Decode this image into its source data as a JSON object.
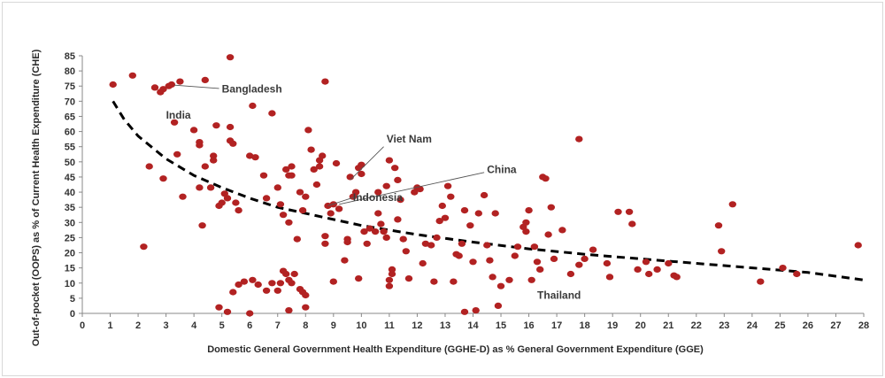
{
  "chart_data": {
    "type": "scatter",
    "xlabel": "Domestic General Government Health Expenditure (GGHE-D) as % General Government Expenditure (GGE)",
    "ylabel": "Out-of-pocket (OOPS) as % of Current Health Expenditure (CHE)",
    "xlim": [
      0,
      28
    ],
    "ylim": [
      0,
      85
    ],
    "x_ticks": [
      0,
      1,
      2,
      3,
      4,
      5,
      6,
      7,
      8,
      9,
      10,
      11,
      12,
      13,
      14,
      15,
      16,
      17,
      18,
      19,
      20,
      21,
      22,
      23,
      24,
      25,
      26,
      27,
      28
    ],
    "y_ticks": [
      0,
      5,
      10,
      15,
      20,
      25,
      30,
      35,
      40,
      45,
      50,
      55,
      60,
      65,
      70,
      75,
      80,
      85
    ],
    "grid": false,
    "colors": {
      "points": "#b22222",
      "trend": "#000000",
      "axis": "#888888"
    },
    "trendline": {
      "style": "dashed",
      "points": [
        [
          1.1,
          70
        ],
        [
          1.5,
          64
        ],
        [
          2,
          58.5
        ],
        [
          3,
          51
        ],
        [
          4,
          45.5
        ],
        [
          5,
          41.5
        ],
        [
          6,
          38
        ],
        [
          7,
          35
        ],
        [
          8,
          33
        ],
        [
          9,
          31
        ],
        [
          10,
          29
        ],
        [
          11,
          27.5
        ],
        [
          12,
          26
        ],
        [
          14,
          23.5
        ],
        [
          16,
          21.3
        ],
        [
          18,
          19.5
        ],
        [
          20,
          18
        ],
        [
          22,
          16.5
        ],
        [
          24,
          15
        ],
        [
          26,
          13.5
        ],
        [
          28,
          11
        ]
      ]
    },
    "points": [
      [
        1.1,
        75.5
      ],
      [
        1.8,
        78.5
      ],
      [
        2.6,
        74.5
      ],
      [
        2.8,
        73
      ],
      [
        2.9,
        74
      ],
      [
        3.1,
        75
      ],
      [
        3.2,
        75.5
      ],
      [
        3.5,
        76.5
      ],
      [
        4.4,
        77
      ],
      [
        5.3,
        84.5
      ],
      [
        8.7,
        76.5
      ],
      [
        2.2,
        22
      ],
      [
        2.4,
        48.5
      ],
      [
        2.9,
        44.5
      ],
      [
        3.3,
        63
      ],
      [
        3.4,
        52.5
      ],
      [
        3.6,
        38.5
      ],
      [
        4.0,
        60.5
      ],
      [
        4.2,
        56.5
      ],
      [
        4.2,
        55.5
      ],
      [
        4.2,
        41.5
      ],
      [
        4.3,
        29
      ],
      [
        4.4,
        48.5
      ],
      [
        4.6,
        41.5
      ],
      [
        4.7,
        52
      ],
      [
        4.7,
        50.5
      ],
      [
        4.8,
        62
      ],
      [
        4.9,
        35.5
      ],
      [
        5.0,
        36.5
      ],
      [
        5.1,
        39.5
      ],
      [
        5.2,
        38
      ],
      [
        5.3,
        57
      ],
      [
        5.3,
        61.5
      ],
      [
        5.4,
        56
      ],
      [
        5.5,
        36.5
      ],
      [
        5.6,
        34
      ],
      [
        4.9,
        2
      ],
      [
        5.2,
        0.5
      ],
      [
        5.4,
        7
      ],
      [
        5.6,
        9.5
      ],
      [
        5.8,
        10.5
      ],
      [
        6.0,
        0
      ],
      [
        6.1,
        11
      ],
      [
        6.3,
        9.5
      ],
      [
        6.6,
        7.5
      ],
      [
        6.8,
        10
      ],
      [
        7.0,
        7.5
      ],
      [
        7.1,
        10
      ],
      [
        7.2,
        14
      ],
      [
        7.3,
        13
      ],
      [
        7.4,
        11
      ],
      [
        7.4,
        1
      ],
      [
        7.5,
        10
      ],
      [
        7.6,
        13
      ],
      [
        7.8,
        8
      ],
      [
        7.9,
        7
      ],
      [
        8.0,
        6
      ],
      [
        8.0,
        2
      ],
      [
        6.0,
        52
      ],
      [
        6.1,
        68.5
      ],
      [
        6.2,
        51.5
      ],
      [
        6.5,
        45.5
      ],
      [
        6.6,
        38
      ],
      [
        6.8,
        66
      ],
      [
        7.0,
        41.5
      ],
      [
        7.1,
        36
      ],
      [
        7.2,
        32.5
      ],
      [
        7.3,
        47.5
      ],
      [
        7.4,
        45.5
      ],
      [
        7.4,
        30
      ],
      [
        7.5,
        48.5
      ],
      [
        7.5,
        45.5
      ],
      [
        7.7,
        24.5
      ],
      [
        7.8,
        40
      ],
      [
        7.9,
        34
      ],
      [
        8.0,
        38.5
      ],
      [
        8.1,
        60.5
      ],
      [
        8.2,
        54
      ],
      [
        8.3,
        47.5
      ],
      [
        8.4,
        42.5
      ],
      [
        8.5,
        50.5
      ],
      [
        8.5,
        48.5
      ],
      [
        8.6,
        52
      ],
      [
        8.7,
        23
      ],
      [
        8.7,
        25.5
      ],
      [
        8.8,
        35.5
      ],
      [
        8.9,
        33
      ],
      [
        9.0,
        36
      ],
      [
        9.1,
        49.5
      ],
      [
        9.2,
        34.5
      ],
      [
        9.0,
        10.5
      ],
      [
        9.4,
        17.5
      ],
      [
        9.5,
        23.5
      ],
      [
        9.5,
        24.5
      ],
      [
        9.6,
        45
      ],
      [
        9.7,
        38.5
      ],
      [
        9.8,
        40
      ],
      [
        9.9,
        11.5
      ],
      [
        9.9,
        48
      ],
      [
        10.0,
        49
      ],
      [
        10.0,
        46
      ],
      [
        10.1,
        27
      ],
      [
        10.2,
        23
      ],
      [
        10.3,
        28
      ],
      [
        10.5,
        27
      ],
      [
        10.6,
        33
      ],
      [
        10.6,
        40
      ],
      [
        10.7,
        29.5
      ],
      [
        10.8,
        27
      ],
      [
        10.9,
        25
      ],
      [
        10.9,
        42
      ],
      [
        11.0,
        9
      ],
      [
        11.0,
        11
      ],
      [
        11.1,
        14.5
      ],
      [
        11.1,
        13
      ],
      [
        11.0,
        50.5
      ],
      [
        11.2,
        48
      ],
      [
        11.3,
        31
      ],
      [
        11.3,
        44
      ],
      [
        11.4,
        37.5
      ],
      [
        11.5,
        24.5
      ],
      [
        11.6,
        20.5
      ],
      [
        11.7,
        11.5
      ],
      [
        11.9,
        40
      ],
      [
        12.0,
        41.5
      ],
      [
        12.1,
        41
      ],
      [
        12.2,
        16.5
      ],
      [
        12.3,
        23
      ],
      [
        12.5,
        22.5
      ],
      [
        12.6,
        10.5
      ],
      [
        12.7,
        25
      ],
      [
        12.8,
        30.5
      ],
      [
        12.9,
        35.5
      ],
      [
        13.0,
        31.5
      ],
      [
        13.1,
        42
      ],
      [
        13.2,
        38.5
      ],
      [
        13.3,
        10.5
      ],
      [
        13.4,
        19.5
      ],
      [
        13.5,
        19
      ],
      [
        13.6,
        23
      ],
      [
        13.7,
        34
      ],
      [
        13.9,
        29
      ],
      [
        14.0,
        17
      ],
      [
        14.2,
        33
      ],
      [
        14.4,
        39
      ],
      [
        14.5,
        22.5
      ],
      [
        14.6,
        17.5
      ],
      [
        14.7,
        12
      ],
      [
        14.8,
        33
      ],
      [
        14.9,
        2.5
      ],
      [
        15.0,
        9
      ],
      [
        15.3,
        11
      ],
      [
        15.5,
        19
      ],
      [
        15.6,
        22
      ],
      [
        15.8,
        28.5
      ],
      [
        15.9,
        27
      ],
      [
        15.9,
        30
      ],
      [
        16.0,
        34
      ],
      [
        16.1,
        11
      ],
      [
        16.2,
        22
      ],
      [
        16.3,
        17
      ],
      [
        16.4,
        14.5
      ],
      [
        16.5,
        45
      ],
      [
        16.6,
        44.5
      ],
      [
        16.7,
        26
      ],
      [
        16.8,
        35
      ],
      [
        16.9,
        18
      ],
      [
        17.2,
        27.5
      ],
      [
        17.5,
        13
      ],
      [
        14.1,
        1
      ],
      [
        13.7,
        0.5
      ],
      [
        17.8,
        57.5
      ],
      [
        17.8,
        16
      ],
      [
        18.0,
        18
      ],
      [
        18.3,
        21
      ],
      [
        18.8,
        16.5
      ],
      [
        18.9,
        12
      ],
      [
        19.2,
        33.5
      ],
      [
        19.6,
        33.5
      ],
      [
        19.7,
        29.5
      ],
      [
        19.9,
        14.5
      ],
      [
        20.2,
        17
      ],
      [
        20.3,
        13
      ],
      [
        20.6,
        14.5
      ],
      [
        21.0,
        16.5
      ],
      [
        21.2,
        12.5
      ],
      [
        21.3,
        12
      ],
      [
        22.8,
        29
      ],
      [
        22.9,
        20.5
      ],
      [
        23.3,
        36
      ],
      [
        24.3,
        10.5
      ],
      [
        25.1,
        15
      ],
      [
        25.6,
        13
      ],
      [
        27.8,
        22.5
      ]
    ],
    "annotations": [
      {
        "text": "Bangladesh",
        "x": 5.0,
        "y": 74.0
      },
      {
        "text": "India",
        "x": 3.0,
        "y": 65.5
      },
      {
        "text": "Viet Nam",
        "x": 10.9,
        "y": 57.5
      },
      {
        "text": "China",
        "x": 14.5,
        "y": 47.5
      },
      {
        "text": "Indonesia",
        "x": 9.7,
        "y": 38.2
      },
      {
        "text": "Thailand",
        "x": 16.3,
        "y": 6.0
      }
    ]
  }
}
